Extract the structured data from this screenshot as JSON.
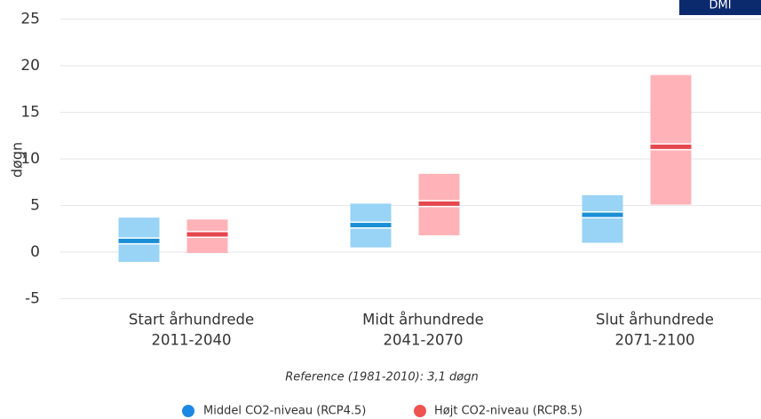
{
  "chart_data": {
    "type": "range-bar",
    "badge": "DMI",
    "y_label": "døgn",
    "annotation": "Reference (1981-2010): 3,1 døgn",
    "categories": [
      "Start århundrede",
      "Midt århundrede",
      "Slut århundrede"
    ],
    "periods": [
      "2011-2040",
      "2041-2070",
      "2071-2100"
    ],
    "ylim": [
      -5,
      25
    ],
    "yticks": [
      -5,
      0,
      5,
      10,
      15,
      20,
      25
    ],
    "grid": true,
    "series": [
      {
        "name": "Middel CO2-niveau (RCP4.5)",
        "color": "#99d3f5",
        "median_color": "#1b8fd6",
        "legend_color": "#1e88e5",
        "low": [
          -1.05,
          0.5,
          1.0
        ],
        "median": [
          1.2,
          2.9,
          4.0
        ],
        "high": [
          3.7,
          5.2,
          6.1
        ]
      },
      {
        "name": "Højt CO2-niveau (RCP8.5)",
        "color": "#ffb3b8",
        "median_color": "#e5474f",
        "legend_color": "#ef5350",
        "low": [
          -0.1,
          1.8,
          5.1
        ],
        "median": [
          1.9,
          5.2,
          11.3
        ],
        "high": [
          3.5,
          8.4,
          19.0
        ]
      }
    ]
  }
}
